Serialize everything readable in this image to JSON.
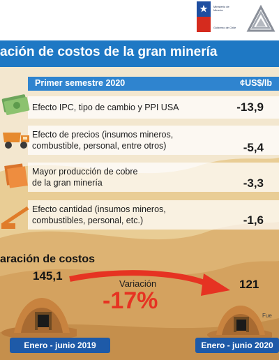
{
  "title": "ación de costos de la gran minería",
  "header": {
    "period": "Primer semestre 2020",
    "unit": "¢US$/lb"
  },
  "rows": [
    {
      "label_lines": [
        "Efecto IPC, tipo de cambio y PPI USA"
      ],
      "value": "-13,9",
      "icon": "money-icon"
    },
    {
      "label_lines": [
        "Efecto de precios (insumos mineros,",
        "combustible, personal, entre otros)"
      ],
      "value": "-5,4",
      "icon": "dump-truck-icon"
    },
    {
      "label_lines": [
        "Mayor producción de cobre",
        "de la gran minería"
      ],
      "value": "-3,3",
      "icon": "copper-plate-icon"
    },
    {
      "label_lines": [
        "Efecto cantidad (insumos mineros,",
        "combustibles, personal, etc.)"
      ],
      "value": "-1,6",
      "icon": "conveyor-icon"
    }
  ],
  "variation": {
    "title": "aración de costos",
    "start_value": "145,1",
    "end_value": "121",
    "label": "Variación",
    "percent": "-17%",
    "start_period": "Enero - junio 2019",
    "end_period": "Enero - junio 2020",
    "source": "Fue"
  },
  "logos": {
    "government_text": [
      "Ministerio de",
      "Minería"
    ],
    "government_subtext": "Gobierno de Chile"
  },
  "colors": {
    "title_blue": "#1e78c4",
    "header_blue": "#2f84cf",
    "accent_red": "#e63322",
    "date_blue": "#1e5aa8",
    "sand": "#e9d2a8"
  }
}
